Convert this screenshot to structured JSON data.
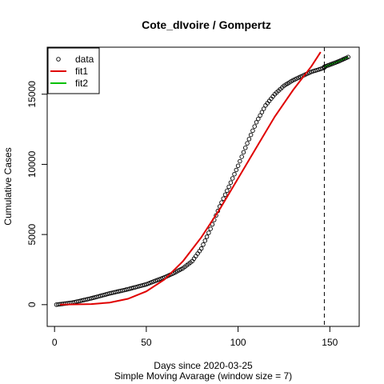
{
  "chart_data": {
    "type": "scatter",
    "title": "Cote_dIvoire / Gompertz",
    "xlabel": "Days since 2020-03-25",
    "xlabel_sub": "Simple Moving Avarage (window size = 7)",
    "ylabel": "Cumulative Cases",
    "xlim": [
      -4,
      166
    ],
    "ylim": [
      -1550,
      18350
    ],
    "xticks": [
      0,
      50,
      100,
      150
    ],
    "yticks": [
      0,
      5000,
      10000,
      15000
    ],
    "vline_x": 147,
    "grid": false,
    "legend_position": "top-left",
    "colors": {
      "data": "#000000",
      "fit1": "#e00000",
      "fit2": "#00c000",
      "vline": "#000000"
    },
    "series": [
      {
        "name": "data",
        "style": "points",
        "points": [
          [
            1,
            0
          ],
          [
            10,
            150
          ],
          [
            20,
            450
          ],
          [
            30,
            800
          ],
          [
            40,
            1100
          ],
          [
            50,
            1450
          ],
          [
            60,
            1950
          ],
          [
            65,
            2250
          ],
          [
            70,
            2600
          ],
          [
            75,
            3100
          ],
          [
            80,
            4000
          ],
          [
            85,
            5400
          ],
          [
            90,
            7000
          ],
          [
            95,
            8400
          ],
          [
            100,
            9900
          ],
          [
            105,
            11500
          ],
          [
            110,
            13000
          ],
          [
            115,
            14200
          ],
          [
            120,
            15000
          ],
          [
            125,
            15600
          ],
          [
            130,
            16000
          ],
          [
            135,
            16300
          ],
          [
            140,
            16600
          ],
          [
            145,
            16800
          ],
          [
            147,
            16900
          ]
        ]
      },
      {
        "name": "fit1",
        "style": "line",
        "points": [
          [
            3,
            0
          ],
          [
            20,
            40
          ],
          [
            30,
            150
          ],
          [
            40,
            420
          ],
          [
            50,
            950
          ],
          [
            60,
            1800
          ],
          [
            70,
            3100
          ],
          [
            80,
            4800
          ],
          [
            90,
            6800
          ],
          [
            100,
            9000
          ],
          [
            110,
            11200
          ],
          [
            120,
            13400
          ],
          [
            130,
            15300
          ],
          [
            140,
            17000
          ],
          [
            145,
            18000
          ]
        ]
      },
      {
        "name": "fit2",
        "style": "line",
        "points": [
          [
            147,
            16950
          ],
          [
            150,
            17100
          ],
          [
            155,
            17350
          ],
          [
            160,
            17650
          ]
        ]
      }
    ]
  }
}
